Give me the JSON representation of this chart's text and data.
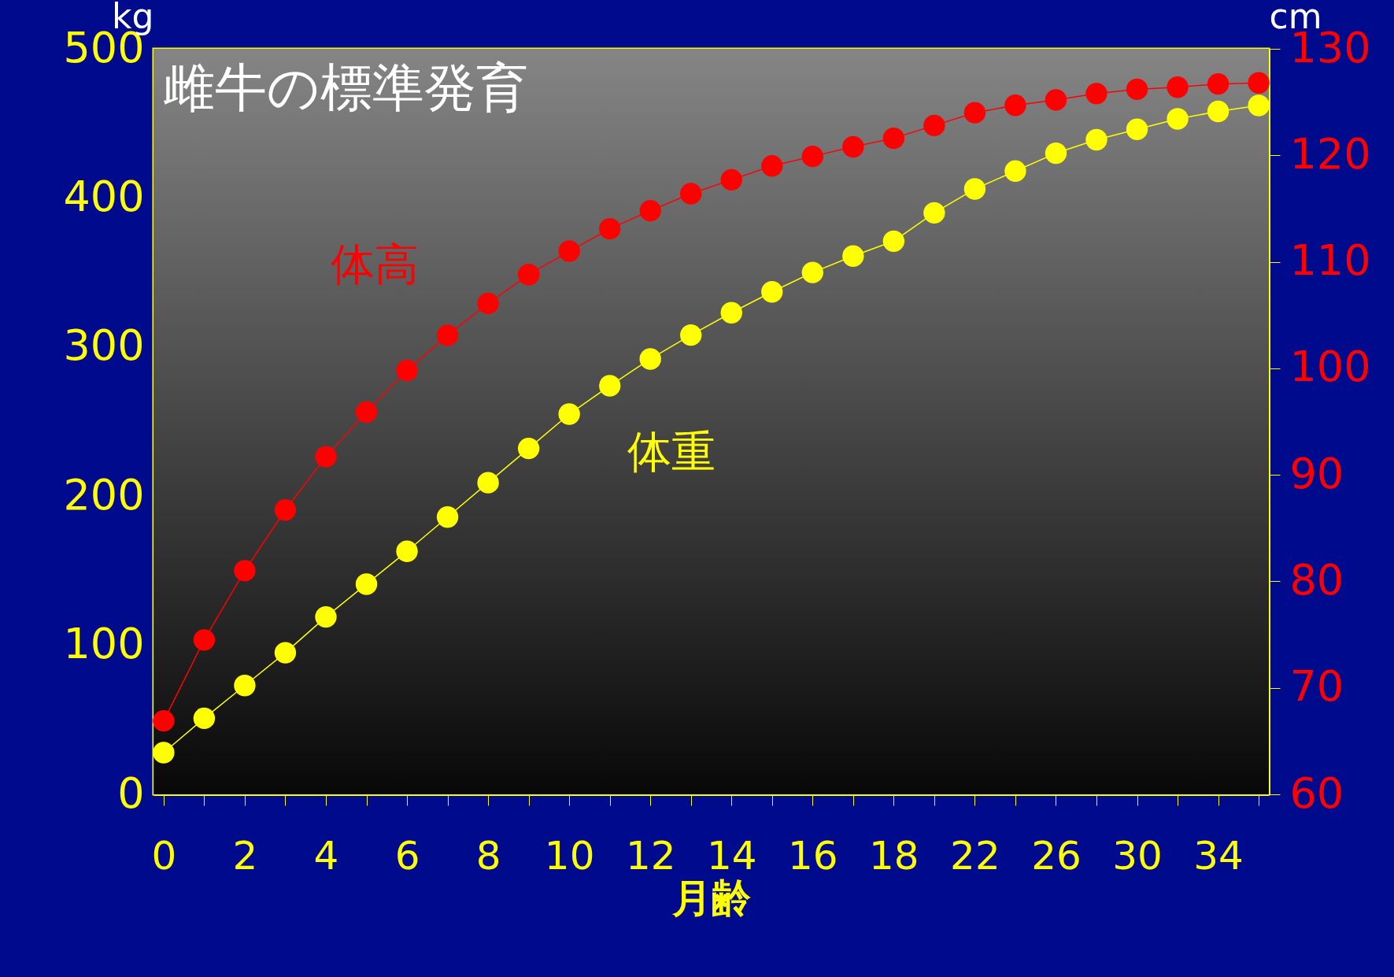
{
  "chart_data": {
    "type": "line",
    "title": "雌牛の標準発育",
    "xlabel": "月齢",
    "ylabel": "kg",
    "y2label": "cm",
    "categories": [
      "0",
      null,
      "2",
      null,
      "4",
      null,
      "6",
      null,
      "8",
      null,
      "10",
      null,
      "12",
      null,
      "14",
      null,
      "16",
      null,
      "18",
      null,
      "22",
      null,
      "26",
      null,
      "30",
      null,
      "34",
      null
    ],
    "series": [
      {
        "name": "体重",
        "color": "#ffff00",
        "values": [
          28,
          51,
          73,
          95,
          119,
          141,
          163,
          186,
          209,
          232,
          255,
          274,
          292,
          308,
          323,
          337,
          350,
          361,
          371,
          390,
          406,
          418,
          430,
          439,
          446,
          453,
          458,
          462
        ]
      },
      {
        "name": "体高",
        "color": "#ff0000",
        "axis": "y2",
        "values": [
          66.9,
          74.5,
          81.0,
          86.7,
          91.7,
          95.9,
          99.8,
          103.1,
          106.1,
          108.8,
          111.0,
          113.1,
          114.8,
          116.4,
          117.7,
          119.0,
          119.9,
          120.8,
          121.6,
          122.8,
          124.0,
          124.7,
          125.2,
          125.8,
          126.2,
          126.4,
          126.7,
          126.8
        ]
      }
    ],
    "ylim": [
      0,
      500
    ],
    "yticks": [
      0,
      100,
      200,
      300,
      400,
      500
    ],
    "y2lim": [
      60,
      130
    ],
    "y2ticks": [
      60,
      70,
      80,
      90,
      100,
      110,
      120,
      130
    ],
    "marker": "circle",
    "line_style": "solid",
    "grid": false
  }
}
